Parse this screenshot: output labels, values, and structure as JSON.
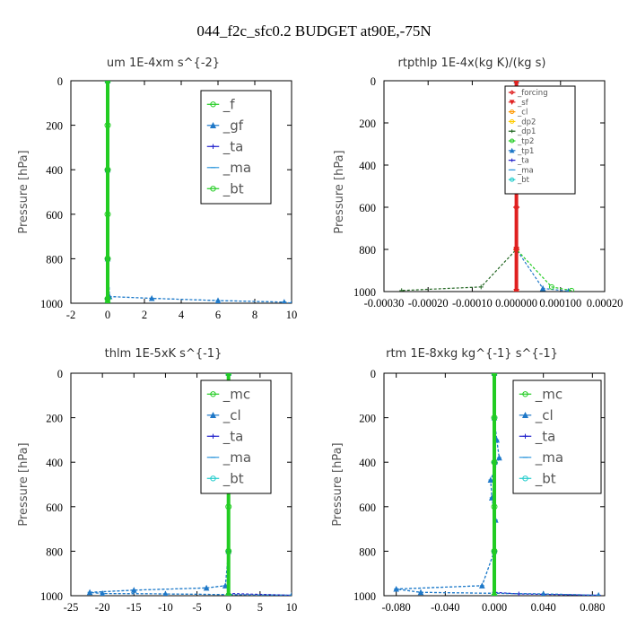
{
  "figure_title": "044_f2c_sfc0.2  BUDGET at90E,-75N",
  "chart_data": [
    {
      "type": "line",
      "title": "um  1E-4xm s^{-2}",
      "ylabel": "Pressure [hPa]",
      "xlim": [
        -2,
        10
      ],
      "ylim": [
        1000,
        0
      ],
      "xticks": [
        "-2",
        "0",
        "2",
        "4",
        "6",
        "8",
        "10"
      ],
      "yticks": [
        "0",
        "200",
        "400",
        "600",
        "800",
        "1000"
      ],
      "legend_position": "top-right",
      "series": [
        {
          "name": "_f",
          "color": "#22cc22",
          "marker": "circle",
          "x": [
            0,
            0,
            0,
            0,
            0,
            0,
            0
          ],
          "y": [
            0,
            200,
            400,
            600,
            800,
            980,
            1000
          ]
        },
        {
          "name": "_gf",
          "color": "#1f78c8",
          "marker": "triangle",
          "x": [
            0,
            0,
            0,
            0.1,
            2.4,
            6,
            9.6,
            10
          ],
          "y": [
            0,
            400,
            800,
            970,
            978,
            988,
            995,
            1000
          ]
        },
        {
          "name": "_ta",
          "color": "#2222cc",
          "marker": "plus",
          "x": [
            0,
            0,
            0,
            0,
            0
          ],
          "y": [
            0,
            400,
            800,
            980,
            1000
          ]
        },
        {
          "name": "_ma",
          "color": "#3399dd",
          "marker": "dash",
          "x": [
            0,
            0,
            0,
            0.1,
            2.4,
            6,
            9.6,
            10
          ],
          "y": [
            0,
            400,
            800,
            970,
            978,
            988,
            995,
            1000
          ]
        },
        {
          "name": "_bt",
          "color": "#22cc22",
          "marker": "circle",
          "x": [
            0,
            0,
            0,
            0,
            0
          ],
          "y": [
            0,
            400,
            800,
            980,
            1000
          ]
        }
      ]
    },
    {
      "type": "line",
      "title": "rtpthlp  1E-4x(kg K)/(kg s)",
      "ylabel": "Pressure [hPa]",
      "xlim": [
        -0.0003,
        0.0002
      ],
      "ylim": [
        1000,
        0
      ],
      "xticks": [
        "-0.00030",
        "-0.00020",
        "-0.00010",
        "0.000000",
        "0.000100",
        "0.00020"
      ],
      "yticks": [
        "0",
        "200",
        "400",
        "600",
        "800",
        "1000"
      ],
      "legend_position": "top-right",
      "series": [
        {
          "name": "_forcing",
          "color": "#e02020",
          "marker": "diamond",
          "x": [
            0,
            0,
            0,
            0,
            0,
            0
          ],
          "y": [
            0,
            200,
            400,
            600,
            800,
            1000
          ]
        },
        {
          "name": "_sf",
          "color": "#e02020",
          "marker": "down-triangle",
          "x": [
            0,
            0,
            0,
            0
          ],
          "y": [
            0,
            400,
            800,
            1000
          ]
        },
        {
          "name": "_cl",
          "color": "#ff9900",
          "marker": "circle",
          "x": [
            0,
            0,
            0,
            0
          ],
          "y": [
            0,
            400,
            800,
            1000
          ]
        },
        {
          "name": "_dp2",
          "color": "#ffcc00",
          "marker": "circle",
          "x": [
            0,
            0,
            0,
            0
          ],
          "y": [
            0,
            400,
            800,
            1000
          ]
        },
        {
          "name": "_dp1",
          "color": "#226622",
          "marker": "plus",
          "x": [
            0,
            0,
            0,
            -8e-05,
            -0.00026
          ],
          "y": [
            0,
            400,
            800,
            978,
            995
          ]
        },
        {
          "name": "_tp2",
          "color": "#22cc22",
          "marker": "circle",
          "x": [
            0,
            0,
            0,
            8e-05,
            0.000125
          ],
          "y": [
            0,
            400,
            800,
            978,
            995
          ]
        },
        {
          "name": "_tp1",
          "color": "#1f78c8",
          "marker": "triangle",
          "x": [
            0,
            0,
            0,
            6e-05,
            0.000118
          ],
          "y": [
            0,
            400,
            800,
            985,
            998
          ]
        },
        {
          "name": "_ta",
          "color": "#2222cc",
          "marker": "plus",
          "x": [
            0,
            0,
            0,
            0
          ],
          "y": [
            0,
            400,
            800,
            1000
          ]
        },
        {
          "name": "_ma",
          "color": "#3399dd",
          "marker": "dash",
          "x": [
            0,
            0,
            0,
            0
          ],
          "y": [
            0,
            400,
            800,
            1000
          ]
        },
        {
          "name": "_bt",
          "color": "#22cccc",
          "marker": "circle",
          "x": [
            0,
            0,
            0,
            0
          ],
          "y": [
            0,
            400,
            800,
            1000
          ]
        }
      ]
    },
    {
      "type": "line",
      "title": "thlm  1E-5xK s^{-1}",
      "ylabel": "Pressure [hPa]",
      "xlim": [
        -25,
        10
      ],
      "ylim": [
        1000,
        0
      ],
      "xticks": [
        "-25",
        "-20",
        "-15",
        "-10",
        "-5",
        "0",
        "5",
        "10"
      ],
      "yticks": [
        "0",
        "200",
        "400",
        "600",
        "800",
        "1000"
      ],
      "legend_position": "top-right",
      "series": [
        {
          "name": "_mc",
          "color": "#22cc22",
          "marker": "circle",
          "x": [
            0,
            0,
            0,
            0,
            0,
            0
          ],
          "y": [
            0,
            200,
            400,
            600,
            800,
            1000
          ]
        },
        {
          "name": "_cl",
          "color": "#1f78c8",
          "marker": "triangle",
          "x": [
            0,
            0,
            0,
            -0.5,
            -3.5,
            -15,
            -22,
            -20,
            -10,
            0,
            10
          ],
          "y": [
            0,
            400,
            800,
            955,
            965,
            975,
            985,
            990,
            992,
            995,
            998
          ]
        },
        {
          "name": "_ta",
          "color": "#2222cc",
          "marker": "plus",
          "x": [
            0,
            0,
            0,
            0,
            10
          ],
          "y": [
            0,
            400,
            800,
            990,
            998
          ]
        },
        {
          "name": "_ma",
          "color": "#3399dd",
          "marker": "dash",
          "x": [
            0,
            0,
            0,
            -0.5,
            -3.5,
            -15,
            -22,
            -20,
            -10,
            0,
            10
          ],
          "y": [
            0,
            400,
            800,
            955,
            965,
            975,
            985,
            990,
            992,
            995,
            998
          ]
        },
        {
          "name": "_bt",
          "color": "#22cccc",
          "marker": "circle",
          "x": [
            0,
            0,
            0,
            0
          ],
          "y": [
            0,
            400,
            800,
            1000
          ]
        }
      ]
    },
    {
      "type": "line",
      "title": "rtm  1E-8xkg kg^{-1} s^{-1}",
      "ylabel": "Pressure [hPa]",
      "xlim": [
        -0.09,
        0.09
      ],
      "ylim": [
        1000,
        0
      ],
      "xticks": [
        "-0.080",
        "-0.040",
        "0.000",
        "0.040",
        "0.080"
      ],
      "yticks": [
        "0",
        "200",
        "400",
        "600",
        "800",
        "1000"
      ],
      "legend_position": "top-right",
      "series": [
        {
          "name": "_mc",
          "color": "#22cc22",
          "marker": "circle",
          "x": [
            0,
            0,
            0,
            0,
            0,
            0
          ],
          "y": [
            0,
            200,
            400,
            600,
            800,
            1000
          ]
        },
        {
          "name": "_cl",
          "color": "#1f78c8",
          "marker": "triangle",
          "x": [
            0,
            0,
            0.002,
            0.004,
            -0.003,
            -0.002,
            0.001,
            0,
            -0.01,
            -0.08,
            -0.06,
            0.04,
            0.085
          ],
          "y": [
            0,
            200,
            300,
            380,
            480,
            560,
            660,
            800,
            955,
            970,
            985,
            992,
            998
          ]
        },
        {
          "name": "_ta",
          "color": "#2222cc",
          "marker": "plus",
          "x": [
            0,
            0,
            0,
            0,
            0.02,
            0.085
          ],
          "y": [
            0,
            400,
            800,
            985,
            992,
            998
          ]
        },
        {
          "name": "_ma",
          "color": "#3399dd",
          "marker": "dash",
          "x": [
            0,
            0,
            0.002,
            0.004,
            -0.003,
            -0.002,
            0.001,
            0,
            -0.01,
            -0.08,
            -0.06,
            0.04,
            0.085
          ],
          "y": [
            0,
            200,
            300,
            380,
            480,
            560,
            660,
            800,
            955,
            970,
            985,
            992,
            998
          ]
        },
        {
          "name": "_bt",
          "color": "#22cccc",
          "marker": "circle",
          "x": [
            0,
            0,
            0,
            0
          ],
          "y": [
            0,
            400,
            800,
            1000
          ]
        }
      ]
    }
  ]
}
